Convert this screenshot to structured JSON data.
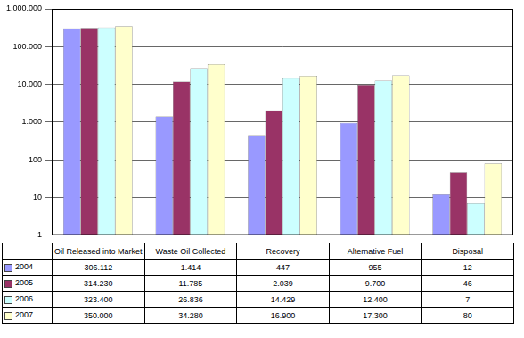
{
  "chart_data": {
    "type": "bar",
    "categories": [
      "Oil Released into Market",
      "Waste Oil Collected",
      "Recovery",
      "Alternative Fuel",
      "Disposal"
    ],
    "series": [
      {
        "name": "2004",
        "color": "#9999ff",
        "values": [
          306112,
          1414,
          447,
          955,
          12
        ],
        "value_labels": [
          "306.112",
          "1.414",
          "447",
          "955",
          "12"
        ]
      },
      {
        "name": "2005",
        "color": "#993366",
        "values": [
          314230,
          11785,
          2039,
          9700,
          46
        ],
        "value_labels": [
          "314.230",
          "11.785",
          "2.039",
          "9.700",
          "46"
        ]
      },
      {
        "name": "2006",
        "color": "#ccffff",
        "values": [
          323400,
          26836,
          14429,
          12400,
          7
        ],
        "value_labels": [
          "323.400",
          "26.836",
          "14.429",
          "12.400",
          "7"
        ]
      },
      {
        "name": "2007",
        "color": "#ffffcc",
        "values": [
          350000,
          34280,
          16900,
          17300,
          80
        ],
        "value_labels": [
          "350.000",
          "34.280",
          "16.900",
          "17.300",
          "80"
        ]
      }
    ],
    "ylim": [
      1,
      1000000
    ],
    "yticks": [
      1,
      10,
      100,
      {
        "value": 1000,
        "label": "1.000"
      },
      {
        "value": 10000,
        "label": "10.000"
      },
      {
        "value": 100000,
        "label": "100.000"
      },
      {
        "value": 1000000,
        "label": "1.000.000"
      }
    ],
    "log": "y",
    "grid": true
  }
}
